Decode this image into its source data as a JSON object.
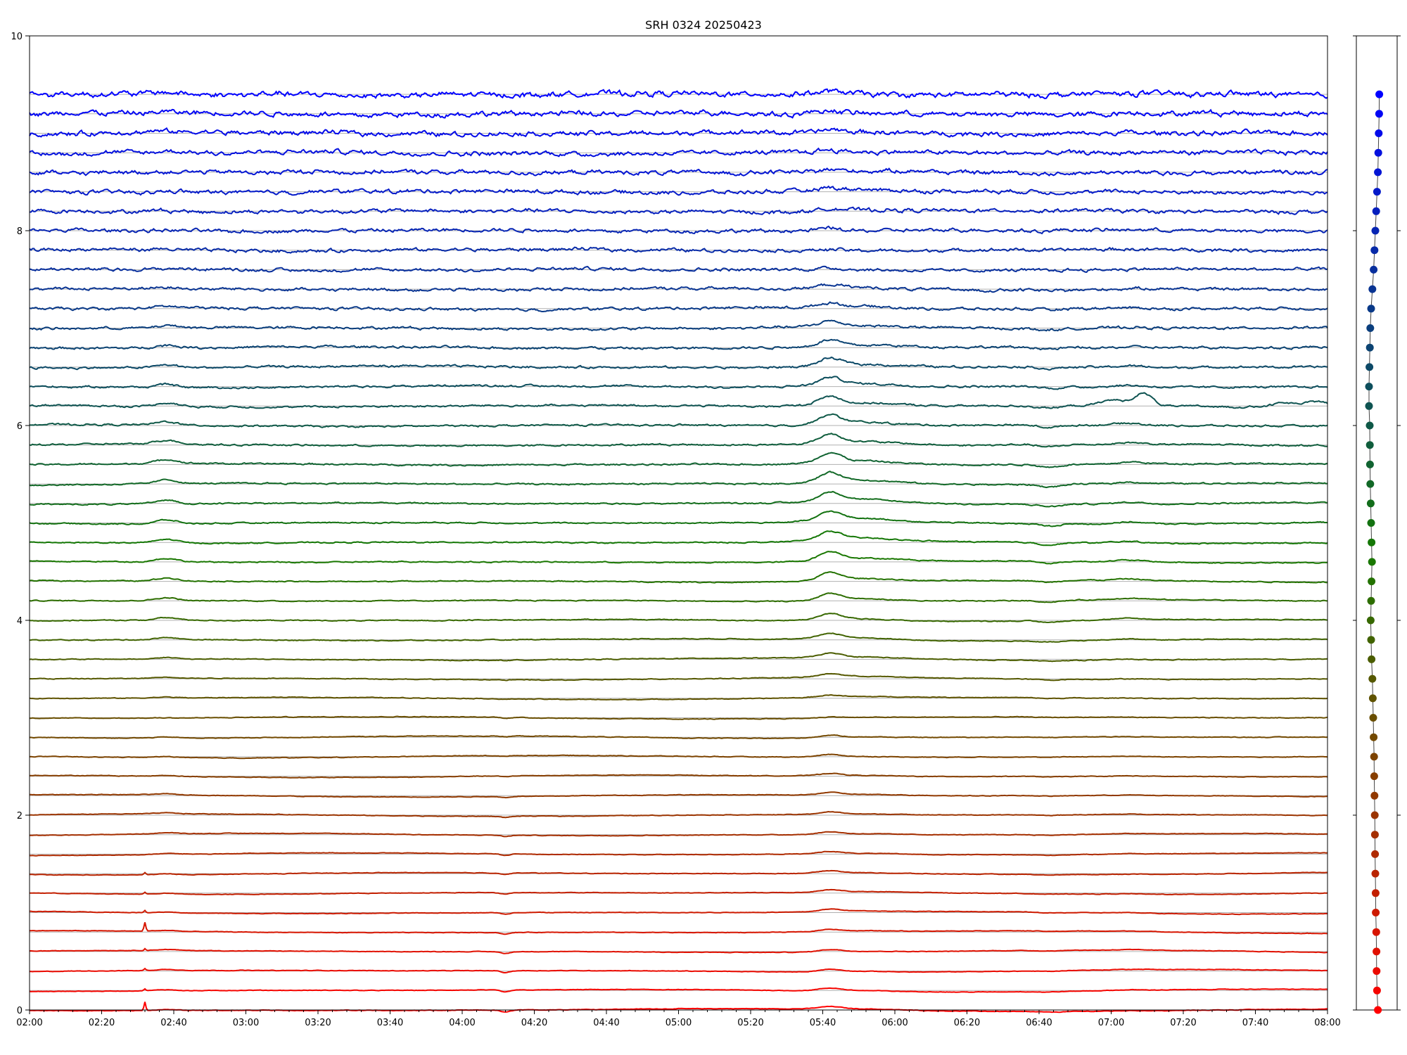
{
  "chart_data": {
    "type": "line",
    "title": "SRH 0324 20250423",
    "xlabel": "",
    "ylabel": "",
    "x_range": [
      "02:00",
      "08:00"
    ],
    "ylim": [
      0,
      10
    ],
    "grid": "horizontal lines at each channel baseline",
    "legend": "none",
    "x_tick_labels": [
      "02:00",
      "02:20",
      "02:40",
      "03:00",
      "03:20",
      "03:40",
      "04:00",
      "04:20",
      "04:40",
      "05:00",
      "05:20",
      "05:40",
      "06:00",
      "06:20",
      "06:40",
      "07:00",
      "07:20",
      "07:40",
      "08:00"
    ],
    "y_tick_labels": [
      "0",
      "2",
      "4",
      "6",
      "8",
      "10"
    ],
    "channel_count": 48,
    "channel_spacing": 0.2,
    "colors": {
      "low": "#ff0000",
      "mid": "#007a00",
      "high": "#0000ff",
      "grid": "#b0b0b0",
      "connector": "#444444"
    },
    "events": [
      {
        "time": "02:32",
        "description": "sharp spike, low channels"
      },
      {
        "time": "04:12",
        "description": "dip, low channels"
      },
      {
        "time": "05:42",
        "description": "burst, mid channels"
      },
      {
        "time": "06:42",
        "description": "dip, mid channels"
      },
      {
        "time": "07:06",
        "description": "peak, channel 6.2"
      }
    ],
    "side_panel": {
      "type": "scatter",
      "description": "channel marker dots with connecting line",
      "x_offsets": [
        0.55,
        0.45,
        0.4,
        0.38,
        0.36,
        0.3,
        0.28,
        0.25,
        0.22,
        0.2,
        0.18,
        0.15,
        0.12,
        0.1,
        0.05,
        0.0,
        -0.05,
        -0.1,
        -0.2,
        -0.25,
        -0.3,
        -0.25,
        -0.2,
        -0.15,
        -0.2,
        -0.25,
        -0.3,
        -0.35,
        -0.38,
        -0.4,
        -0.42,
        -0.5,
        -0.5,
        -0.45,
        -0.4,
        -0.35,
        -0.25,
        -0.1,
        0.05,
        0.15,
        0.25,
        0.35,
        0.45,
        0.55,
        0.6,
        0.65,
        0.7,
        0.72
      ]
    }
  }
}
